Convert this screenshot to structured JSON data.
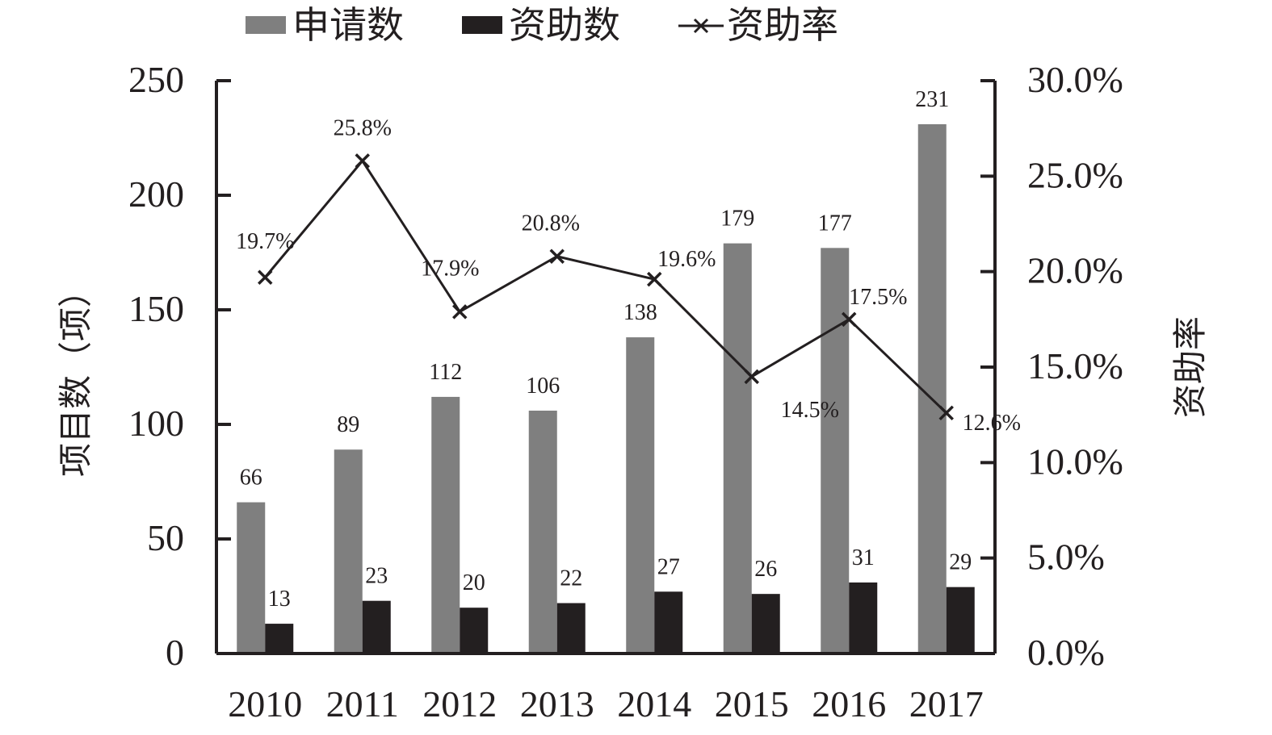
{
  "chart_data": {
    "type": "bar",
    "categories": [
      "2010",
      "2011",
      "2012",
      "2013",
      "2014",
      "2015",
      "2016",
      "2017"
    ],
    "series": [
      {
        "name": "申请数",
        "kind": "bar",
        "axis": "left",
        "color": "#7f7f7f",
        "values": [
          66,
          89,
          112,
          106,
          138,
          179,
          177,
          231
        ]
      },
      {
        "name": "资助数",
        "kind": "bar",
        "axis": "left",
        "color": "#231f20",
        "values": [
          13,
          23,
          20,
          22,
          27,
          26,
          31,
          29
        ]
      },
      {
        "name": "资助率",
        "kind": "line",
        "marker": "x",
        "axis": "right",
        "color": "#231f20",
        "values": [
          19.7,
          25.8,
          17.9,
          20.8,
          19.6,
          14.5,
          17.5,
          12.6
        ],
        "labels": [
          "19.7%",
          "25.8%",
          "17.9%",
          "20.8%",
          "19.6%",
          "14.5%",
          "17.5%",
          "12.6%"
        ]
      }
    ],
    "ylabel": "项目数（项）",
    "y2label": "资助率",
    "ylim": [
      0,
      250
    ],
    "yticks": [
      "0",
      "50",
      "100",
      "150",
      "200",
      "250"
    ],
    "y2lim": [
      0,
      30
    ],
    "y2ticks": [
      "0.0%",
      "5.0%",
      "10.0%",
      "15.0%",
      "20.0%",
      "25.0%",
      "30.0%"
    ],
    "legend_position": "top",
    "grid": false
  }
}
